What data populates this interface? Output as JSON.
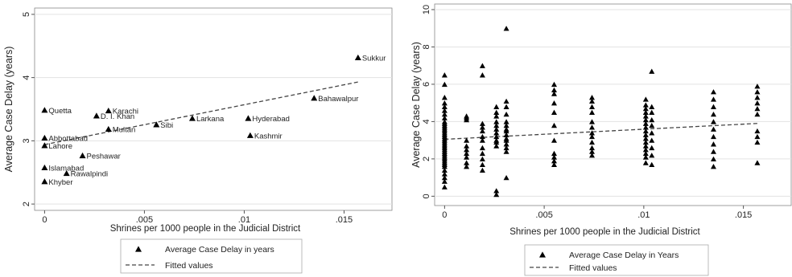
{
  "chart_data": [
    {
      "type": "scatter",
      "xlabel": "Shrines per 1000 people in the Judicial District",
      "ylabel": "Average Case Delay (years)",
      "xlim": [
        -0.0005,
        0.0174
      ],
      "ylim": [
        1.9,
        5.1
      ],
      "xticks": [
        0,
        0.005,
        0.01,
        0.015
      ],
      "xtick_labels": [
        "0",
        ".005",
        ".01",
        ".015"
      ],
      "yticks": [
        2,
        3,
        4,
        5
      ],
      "ytick_labels": [
        "2",
        "3",
        "4",
        "5"
      ],
      "grid": "horizontal",
      "legend_position": "bottom",
      "legend": [
        {
          "label": "Average Case Delay in years",
          "marker": "triangle"
        },
        {
          "label": "Fitted values",
          "marker": "dashed-line"
        }
      ],
      "points": [
        {
          "label": "Sukkur",
          "x": 0.0157,
          "y": 4.32
        },
        {
          "label": "Bahawalpur",
          "x": 0.0135,
          "y": 3.68
        },
        {
          "label": "Karachi",
          "x": 0.0032,
          "y": 3.48
        },
        {
          "label": "D. I. Khan",
          "x": 0.0026,
          "y": 3.4
        },
        {
          "label": "Quetta",
          "x": 0.0,
          "y": 3.49
        },
        {
          "label": "Larkana",
          "x": 0.0074,
          "y": 3.36
        },
        {
          "label": "Hyderabad",
          "x": 0.0102,
          "y": 3.36
        },
        {
          "label": "Sibi",
          "x": 0.0056,
          "y": 3.26
        },
        {
          "label": "Multan",
          "x": 0.0032,
          "y": 3.19
        },
        {
          "label": "Kashmir",
          "x": 0.0103,
          "y": 3.09
        },
        {
          "label": "Abbottabad",
          "x": 0.0,
          "y": 3.05
        },
        {
          "label": "Lahore",
          "x": 0.0,
          "y": 2.93
        },
        {
          "label": "Peshawar",
          "x": 0.0019,
          "y": 2.77
        },
        {
          "label": "Islamabad",
          "x": 0.0,
          "y": 2.58
        },
        {
          "label": "Rawalpindi",
          "x": 0.0011,
          "y": 2.49
        },
        {
          "label": "Khyber",
          "x": 0.0,
          "y": 2.36
        }
      ],
      "fit_line": {
        "x": [
          0,
          0.0157
        ],
        "y": [
          2.94,
          3.93
        ]
      }
    },
    {
      "type": "scatter",
      "xlabel": "Shrines per 1000 people in the Judicial District",
      "ylabel": "Average Case Delay (years)",
      "xlim": [
        -0.0005,
        0.0174
      ],
      "ylim": [
        -0.5,
        10.3
      ],
      "xticks": [
        0,
        0.005,
        0.01,
        0.015
      ],
      "xtick_labels": [
        "0",
        ".005",
        ".01",
        ".015"
      ],
      "yticks": [
        0,
        2,
        4,
        6,
        8,
        10
      ],
      "ytick_labels": [
        "0",
        "2",
        "4",
        "6",
        "8",
        "10"
      ],
      "grid": "horizontal",
      "legend_position": "bottom",
      "legend": [
        {
          "label": "Average Case Delay in Years",
          "marker": "triangle"
        },
        {
          "label": "Fitted values",
          "marker": "dashed-line"
        }
      ],
      "columns": [
        {
          "x": 0.0,
          "y": [
            6.5,
            6.0,
            5.3,
            5.0,
            4.8,
            4.6,
            4.4,
            4.2,
            4.0,
            3.9,
            3.8,
            3.7,
            3.6,
            3.5,
            3.4,
            3.3,
            3.2,
            3.1,
            3.0,
            2.9,
            2.8,
            2.7,
            2.6,
            2.5,
            2.4,
            2.3,
            2.2,
            2.1,
            2.0,
            1.9,
            1.8,
            1.7,
            1.6,
            1.4,
            1.2,
            1.0,
            0.8,
            0.5
          ]
        },
        {
          "x": 0.0011,
          "y": [
            4.3,
            4.2,
            4.1,
            3.0,
            2.7,
            2.5,
            2.3,
            2.1,
            1.8,
            1.6
          ]
        },
        {
          "x": 0.0019,
          "y": [
            7.0,
            6.5,
            3.9,
            3.7,
            3.5,
            3.2,
            3.0,
            2.6,
            2.3,
            2.0,
            1.7,
            1.4
          ]
        },
        {
          "x": 0.0026,
          "y": [
            4.8,
            4.5,
            4.3,
            4.0,
            3.8,
            3.6,
            3.4,
            3.2,
            3.0,
            2.9,
            2.7,
            0.3,
            0.1
          ]
        },
        {
          "x": 0.0031,
          "y": [
            9.0,
            5.1,
            4.8,
            4.4,
            4.0,
            3.8,
            3.6,
            3.5,
            3.3,
            3.1,
            3.0,
            2.8,
            2.6,
            2.4,
            1.0
          ]
        },
        {
          "x": 0.0055,
          "y": [
            6.0,
            5.7,
            5.5,
            5.0,
            4.5,
            3.8,
            3.0,
            2.3,
            2.1,
            1.9,
            1.7
          ]
        },
        {
          "x": 0.0074,
          "y": [
            5.3,
            5.1,
            4.8,
            4.5,
            4.0,
            3.7,
            3.4,
            3.2,
            2.9,
            2.6,
            2.4,
            2.2
          ]
        },
        {
          "x": 0.0101,
          "y": [
            5.2,
            4.9,
            4.7,
            4.5,
            4.3,
            4.1,
            3.9,
            3.7,
            3.5,
            3.3,
            3.1,
            2.9,
            2.7,
            2.5,
            2.3,
            2.1,
            1.8
          ]
        },
        {
          "x": 0.0104,
          "y": [
            6.7,
            4.8,
            4.5,
            4.1,
            3.8,
            3.4,
            3.0,
            2.6,
            2.2,
            1.7
          ]
        },
        {
          "x": 0.0135,
          "y": [
            5.6,
            5.2,
            4.8,
            4.4,
            4.0,
            3.6,
            3.2,
            2.8,
            2.4,
            2.0,
            1.6
          ]
        },
        {
          "x": 0.0157,
          "y": [
            5.9,
            5.6,
            5.3,
            5.0,
            4.7,
            4.4,
            3.5,
            3.2,
            2.9,
            1.8
          ]
        }
      ],
      "fit_line": {
        "x": [
          0,
          0.0157
        ],
        "y": [
          3.05,
          3.9
        ]
      }
    }
  ]
}
